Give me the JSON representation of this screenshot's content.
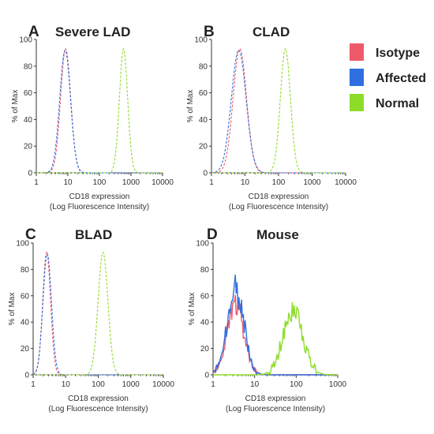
{
  "legend": {
    "items": [
      {
        "label": "Isotype",
        "color": "#ef5a6a"
      },
      {
        "label": "Affected",
        "color": "#2f6fe0"
      },
      {
        "label": "Normal",
        "color": "#8edc2a"
      }
    ]
  },
  "chart_data": [
    {
      "type": "line",
      "letter": "A",
      "title": "Severe LAD",
      "xlabel_line1": "CD18 expression",
      "xlabel_line2": "(Log Fluorescence Intensity)",
      "ylabel": "% of Max",
      "x_scale": "log",
      "xlim": [
        1,
        10000
      ],
      "ylim": [
        0,
        100
      ],
      "xticks": [
        "1",
        "10",
        "100",
        "1000",
        "10000"
      ],
      "yticks": [
        "0",
        "20",
        "40",
        "60",
        "80",
        "100"
      ],
      "series": [
        {
          "name": "Isotype",
          "peak_x": 8.5,
          "peak_y": 93,
          "width_decades": 0.16,
          "dashed": true
        },
        {
          "name": "Affected",
          "peak_x": 8.2,
          "peak_y": 92,
          "width_decades": 0.17,
          "dashed": true
        },
        {
          "name": "Normal",
          "peak_x": 580,
          "peak_y": 93,
          "width_decades": 0.13,
          "dashed": true
        }
      ]
    },
    {
      "type": "line",
      "letter": "B",
      "title": "CLAD",
      "xlabel_line1": "CD18 expression",
      "xlabel_line2": "(Log Fluorescence Intensity)",
      "ylabel": "% of Max",
      "x_scale": "log",
      "xlim": [
        1,
        10000
      ],
      "ylim": [
        0,
        100
      ],
      "xticks": [
        "1",
        "10",
        "100",
        "1000",
        "10000"
      ],
      "yticks": [
        "0",
        "20",
        "40",
        "60",
        "80",
        "100"
      ],
      "series": [
        {
          "name": "Isotype",
          "peak_x": 7,
          "peak_y": 93,
          "width_decades": 0.2,
          "dashed": true
        },
        {
          "name": "Affected",
          "peak_x": 6.5,
          "peak_y": 92,
          "width_decades": 0.22,
          "dashed": true
        },
        {
          "name": "Normal",
          "peak_x": 160,
          "peak_y": 93,
          "width_decades": 0.15,
          "dashed": true
        }
      ]
    },
    {
      "type": "line",
      "letter": "C",
      "title": "BLAD",
      "xlabel_line1": "CD18 expression",
      "xlabel_line2": "(Log Fluorescence Intensity)",
      "ylabel": "% of Max",
      "x_scale": "log",
      "xlim": [
        1,
        10000
      ],
      "ylim": [
        0,
        100
      ],
      "xticks": [
        "1",
        "10",
        "100",
        "1000",
        "10000"
      ],
      "yticks": [
        "0",
        "20",
        "40",
        "60",
        "80",
        "100"
      ],
      "series": [
        {
          "name": "Isotype",
          "peak_x": 2.6,
          "peak_y": 93,
          "width_decades": 0.12,
          "dashed": true
        },
        {
          "name": "Affected",
          "peak_x": 2.7,
          "peak_y": 92,
          "width_decades": 0.13,
          "dashed": true
        },
        {
          "name": "Normal",
          "peak_x": 140,
          "peak_y": 93,
          "width_decades": 0.15,
          "dashed": true
        }
      ]
    },
    {
      "type": "line",
      "letter": "D",
      "title": "Mouse",
      "xlabel_line1": "CD18 expression",
      "xlabel_line2": "(Log Fluorescence Intensity)",
      "ylabel": "% of Max",
      "x_scale": "log",
      "xlim": [
        1,
        1000
      ],
      "ylim": [
        0,
        100
      ],
      "xticks": [
        "1",
        "10",
        "100",
        "1000"
      ],
      "yticks": [
        "0",
        "20",
        "40",
        "60",
        "80",
        "100"
      ],
      "series": [
        {
          "name": "Isotype",
          "peak_x": 3.5,
          "peak_y": 55,
          "width_decades": 0.2,
          "dashed": false
        },
        {
          "name": "Affected",
          "peak_x": 3.5,
          "peak_y": 65,
          "width_decades": 0.2,
          "dashed": false
        },
        {
          "name": "Normal",
          "peak_x": 85,
          "peak_y": 48,
          "width_decades": 0.24,
          "dashed": false
        }
      ]
    }
  ]
}
